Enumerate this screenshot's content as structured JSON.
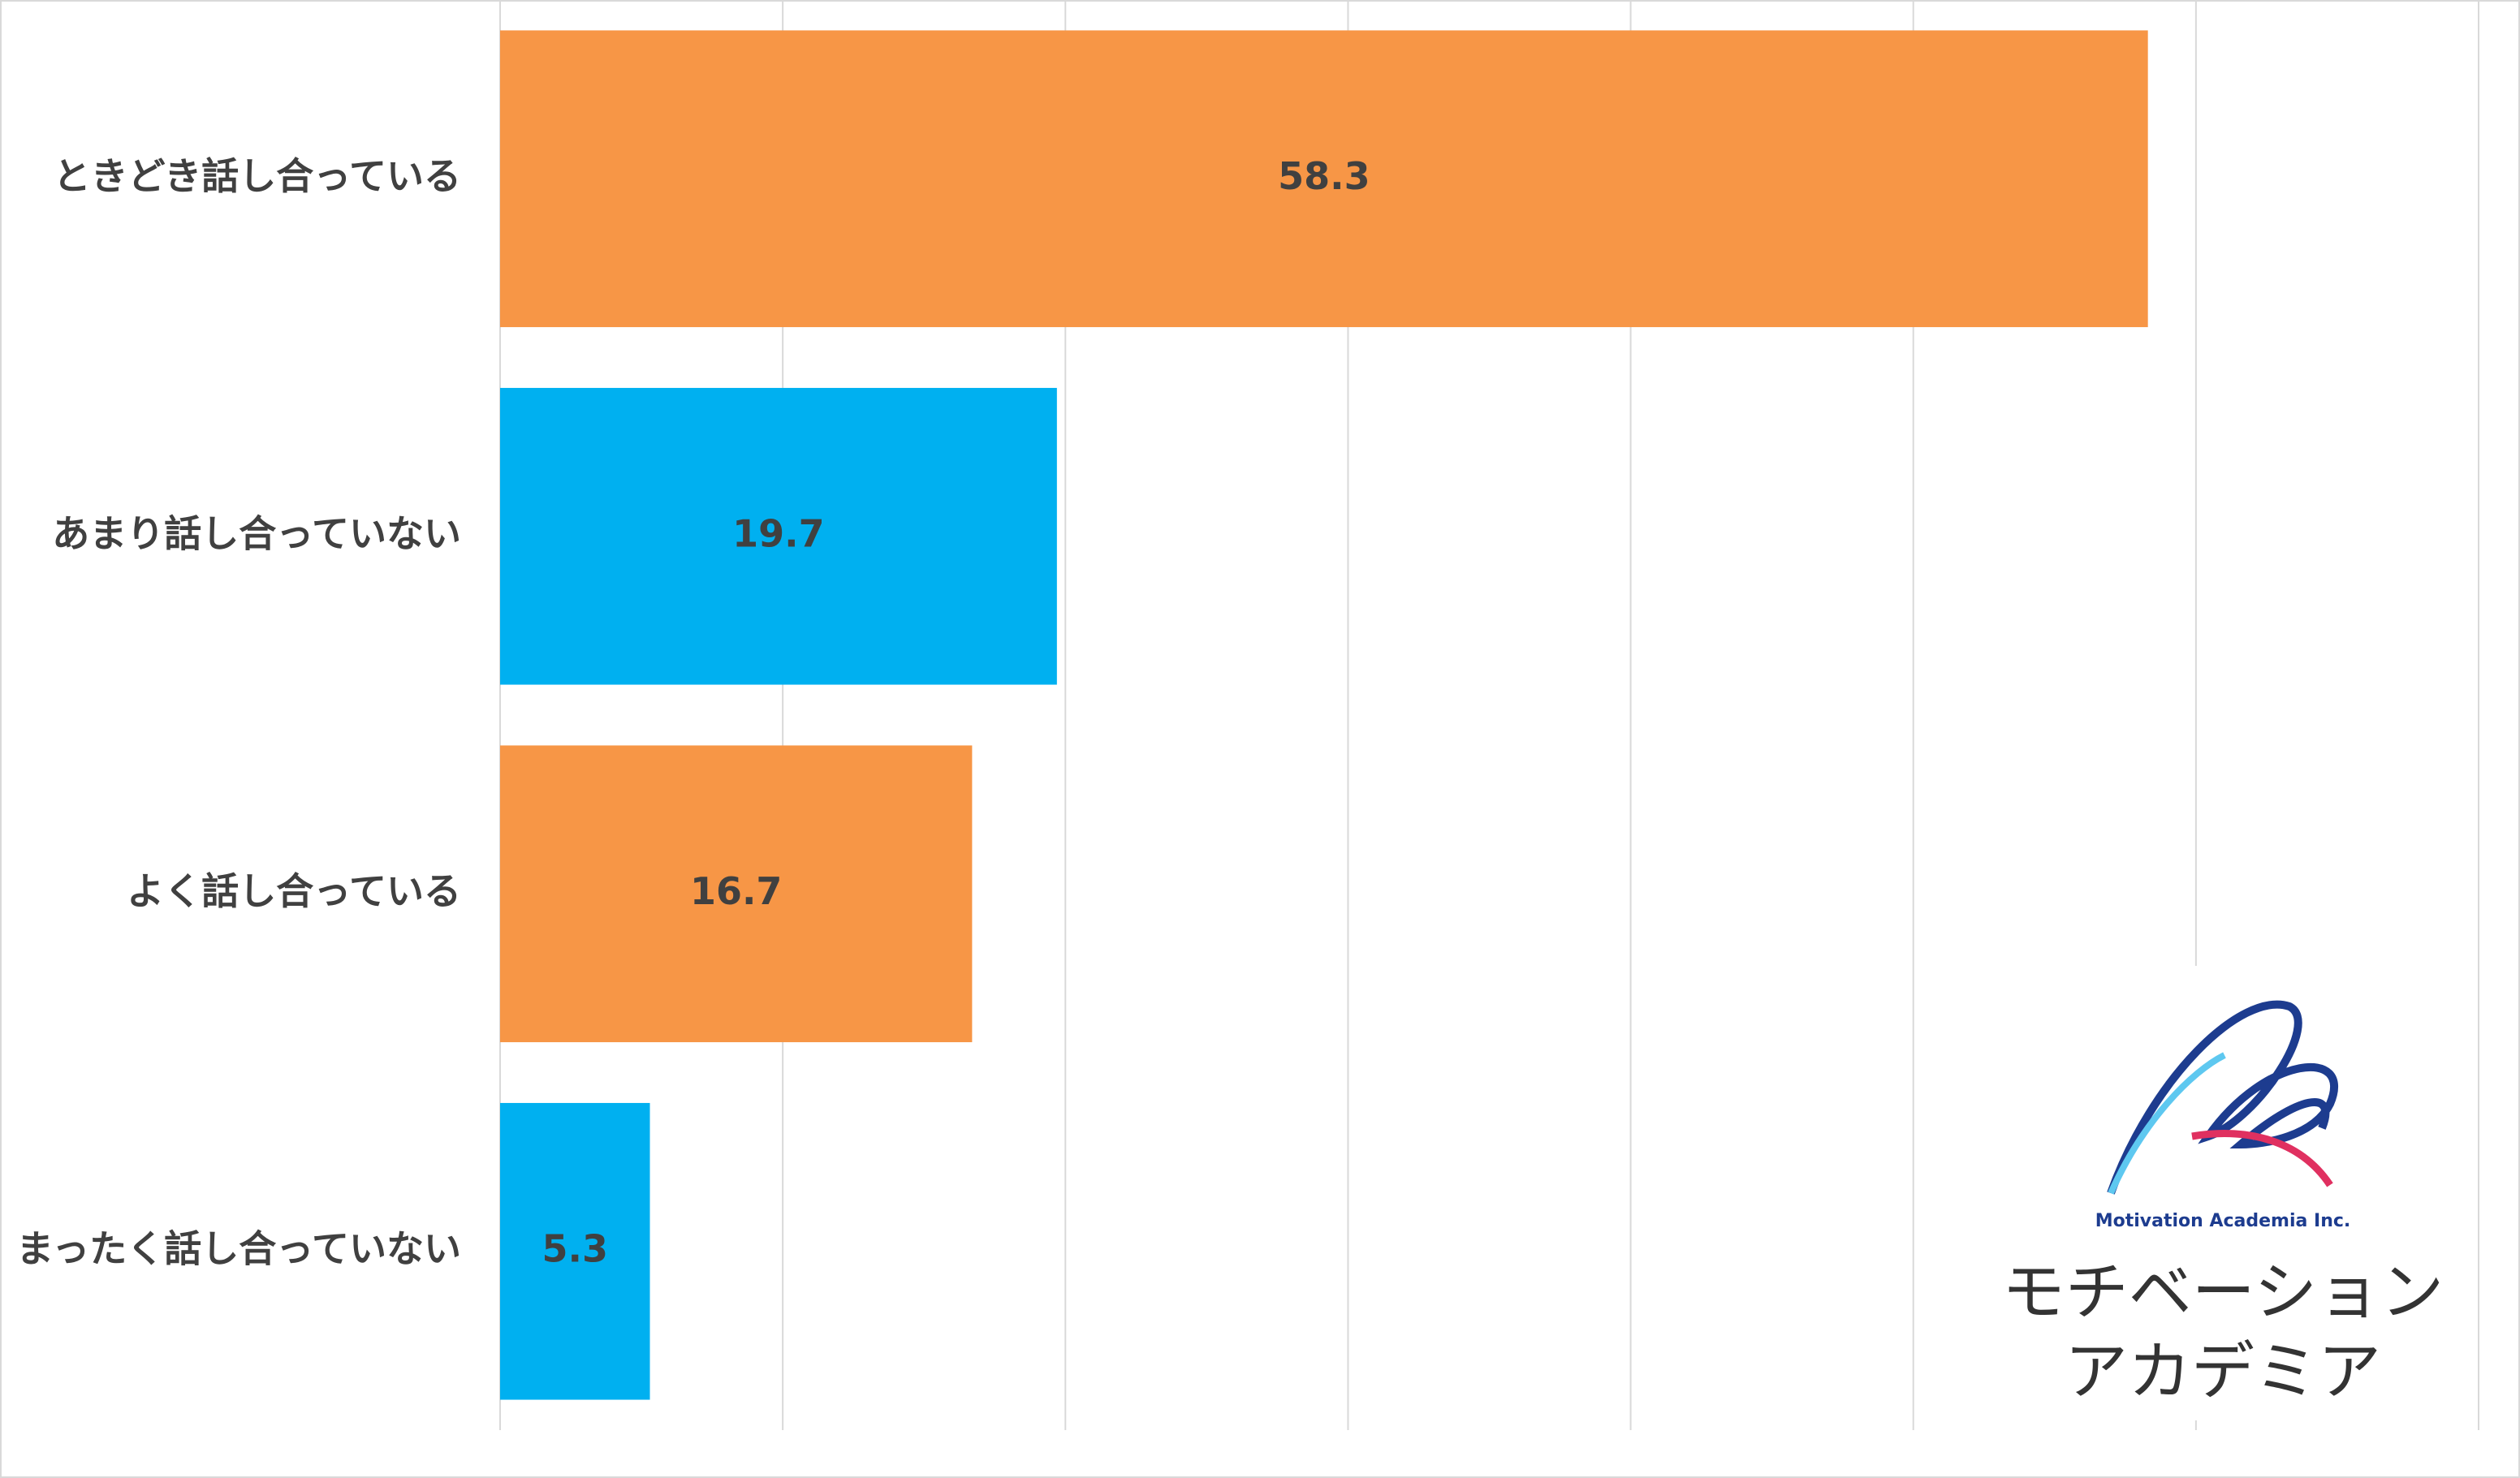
{
  "chart_data": {
    "type": "barh",
    "categories": [
      "ときどき話し合っている",
      "あまり話し合っていない",
      "よく話し合っている",
      "まったく話し合っていない"
    ],
    "values": [
      58.3,
      19.7,
      16.7,
      5.3
    ],
    "colors": [
      "#f79646",
      "#00b0f0",
      "#f79646",
      "#00b0f0"
    ],
    "xlim": [
      0,
      70
    ],
    "xticks": [
      0,
      10,
      20,
      30,
      40,
      50,
      60,
      70
    ],
    "grid": true
  },
  "logo": {
    "tagline": "Motivation Academia Inc.",
    "line1": "モチベーション",
    "line2": "アカデミア"
  }
}
